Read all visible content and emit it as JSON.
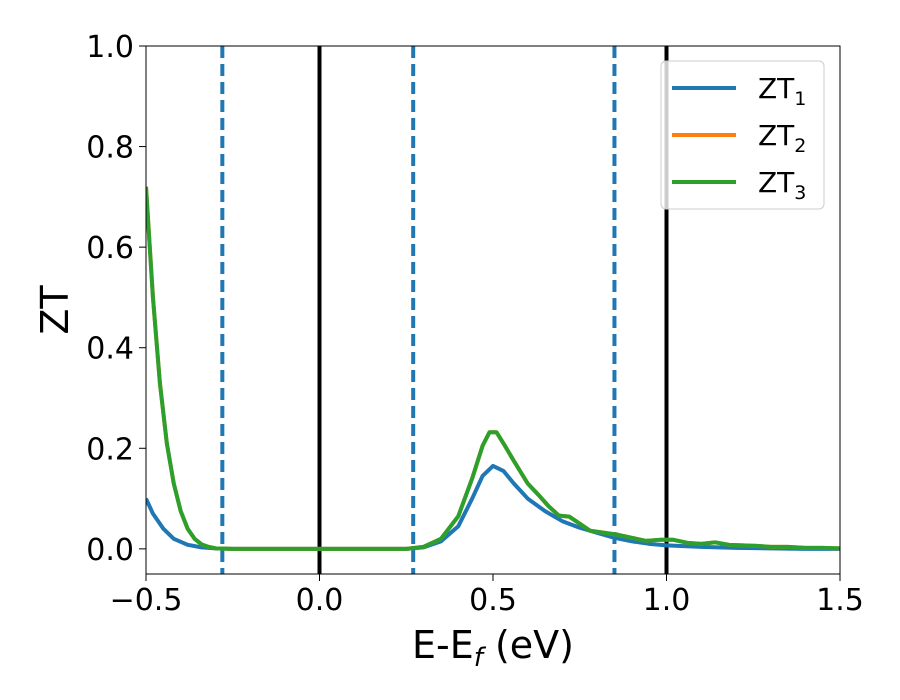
{
  "chart_data": {
    "type": "line",
    "xlabel": "E-E",
    "xlabel_sub": "f",
    "xlabel_unit": " (eV)",
    "ylabel": "ZT",
    "xlim": [
      -0.5,
      1.5
    ],
    "ylim": [
      -0.05,
      1.0
    ],
    "x_ticks": [
      -0.5,
      0.0,
      0.5,
      1.0,
      1.5
    ],
    "x_tick_labels": [
      "−0.5",
      "0.0",
      "0.5",
      "1.0",
      "1.5"
    ],
    "y_ticks": [
      0.0,
      0.2,
      0.4,
      0.6,
      0.8,
      1.0
    ],
    "y_tick_labels": [
      "0.0",
      "0.2",
      "0.4",
      "0.6",
      "0.8",
      "1.0"
    ],
    "grid": false,
    "legend_position": "top-right",
    "vertical_lines": [
      {
        "x": -0.28,
        "style": "dashed",
        "color": "#1f77b4"
      },
      {
        "x": 0.0,
        "style": "solid",
        "color": "#000000"
      },
      {
        "x": 0.27,
        "style": "dashed",
        "color": "#1f77b4"
      },
      {
        "x": 0.85,
        "style": "dashed",
        "color": "#1f77b4"
      },
      {
        "x": 1.0,
        "style": "solid",
        "color": "#000000"
      }
    ],
    "series": [
      {
        "name": "ZT",
        "sub": "1",
        "color": "#1f77b4",
        "points": [
          [
            -0.5,
            0.1
          ],
          [
            -0.48,
            0.07
          ],
          [
            -0.45,
            0.04
          ],
          [
            -0.42,
            0.02
          ],
          [
            -0.38,
            0.008
          ],
          [
            -0.34,
            0.003
          ],
          [
            -0.3,
            0.001
          ],
          [
            -0.25,
            0.0
          ],
          [
            0.0,
            0.0
          ],
          [
            0.25,
            0.0
          ],
          [
            0.3,
            0.003
          ],
          [
            0.35,
            0.015
          ],
          [
            0.4,
            0.045
          ],
          [
            0.44,
            0.1
          ],
          [
            0.47,
            0.145
          ],
          [
            0.5,
            0.165
          ],
          [
            0.53,
            0.155
          ],
          [
            0.56,
            0.13
          ],
          [
            0.6,
            0.1
          ],
          [
            0.65,
            0.075
          ],
          [
            0.7,
            0.055
          ],
          [
            0.75,
            0.042
          ],
          [
            0.8,
            0.032
          ],
          [
            0.85,
            0.022
          ],
          [
            0.9,
            0.015
          ],
          [
            0.95,
            0.01
          ],
          [
            1.0,
            0.007
          ],
          [
            1.1,
            0.004
          ],
          [
            1.2,
            0.002
          ],
          [
            1.3,
            0.001
          ],
          [
            1.4,
            0.0
          ],
          [
            1.5,
            0.0
          ]
        ]
      },
      {
        "name": "ZT",
        "sub": "2",
        "color": "#ff7f0e",
        "points": [
          [
            -0.5,
            0.72
          ],
          [
            -0.48,
            0.5
          ],
          [
            -0.46,
            0.33
          ],
          [
            -0.44,
            0.21
          ],
          [
            -0.42,
            0.13
          ],
          [
            -0.4,
            0.075
          ],
          [
            -0.38,
            0.04
          ],
          [
            -0.36,
            0.02
          ],
          [
            -0.34,
            0.009
          ],
          [
            -0.32,
            0.004
          ],
          [
            -0.3,
            0.001
          ],
          [
            -0.25,
            0.0
          ],
          [
            0.0,
            0.0
          ],
          [
            0.25,
            0.0
          ],
          [
            0.3,
            0.004
          ],
          [
            0.35,
            0.02
          ],
          [
            0.4,
            0.065
          ],
          [
            0.44,
            0.14
          ],
          [
            0.47,
            0.205
          ],
          [
            0.49,
            0.232
          ],
          [
            0.51,
            0.232
          ],
          [
            0.53,
            0.21
          ],
          [
            0.56,
            0.175
          ],
          [
            0.6,
            0.13
          ],
          [
            0.63,
            0.108
          ],
          [
            0.66,
            0.085
          ],
          [
            0.69,
            0.066
          ],
          [
            0.72,
            0.064
          ],
          [
            0.75,
            0.05
          ],
          [
            0.78,
            0.036
          ],
          [
            0.82,
            0.032
          ],
          [
            0.86,
            0.028
          ],
          [
            0.9,
            0.022
          ],
          [
            0.94,
            0.016
          ],
          [
            0.98,
            0.018
          ],
          [
            1.02,
            0.018
          ],
          [
            1.06,
            0.012
          ],
          [
            1.1,
            0.01
          ],
          [
            1.14,
            0.013
          ],
          [
            1.18,
            0.008
          ],
          [
            1.22,
            0.007
          ],
          [
            1.26,
            0.006
          ],
          [
            1.3,
            0.004
          ],
          [
            1.35,
            0.004
          ],
          [
            1.4,
            0.002
          ],
          [
            1.45,
            0.002
          ],
          [
            1.5,
            0.001
          ]
        ]
      },
      {
        "name": "ZT",
        "sub": "3",
        "color": "#2ca02c",
        "points": [
          [
            -0.5,
            0.72
          ],
          [
            -0.48,
            0.5
          ],
          [
            -0.46,
            0.33
          ],
          [
            -0.44,
            0.21
          ],
          [
            -0.42,
            0.13
          ],
          [
            -0.4,
            0.075
          ],
          [
            -0.38,
            0.04
          ],
          [
            -0.36,
            0.02
          ],
          [
            -0.34,
            0.009
          ],
          [
            -0.32,
            0.004
          ],
          [
            -0.3,
            0.001
          ],
          [
            -0.25,
            0.0
          ],
          [
            0.0,
            0.0
          ],
          [
            0.25,
            0.0
          ],
          [
            0.3,
            0.004
          ],
          [
            0.35,
            0.02
          ],
          [
            0.4,
            0.065
          ],
          [
            0.44,
            0.14
          ],
          [
            0.47,
            0.205
          ],
          [
            0.49,
            0.232
          ],
          [
            0.51,
            0.232
          ],
          [
            0.53,
            0.21
          ],
          [
            0.56,
            0.175
          ],
          [
            0.6,
            0.13
          ],
          [
            0.63,
            0.108
          ],
          [
            0.66,
            0.085
          ],
          [
            0.69,
            0.066
          ],
          [
            0.72,
            0.064
          ],
          [
            0.75,
            0.05
          ],
          [
            0.78,
            0.036
          ],
          [
            0.82,
            0.032
          ],
          [
            0.86,
            0.028
          ],
          [
            0.9,
            0.022
          ],
          [
            0.94,
            0.016
          ],
          [
            0.98,
            0.018
          ],
          [
            1.02,
            0.018
          ],
          [
            1.06,
            0.012
          ],
          [
            1.1,
            0.01
          ],
          [
            1.14,
            0.013
          ],
          [
            1.18,
            0.008
          ],
          [
            1.22,
            0.007
          ],
          [
            1.26,
            0.006
          ],
          [
            1.3,
            0.004
          ],
          [
            1.35,
            0.004
          ],
          [
            1.4,
            0.002
          ],
          [
            1.45,
            0.002
          ],
          [
            1.5,
            0.001
          ]
        ]
      }
    ]
  }
}
